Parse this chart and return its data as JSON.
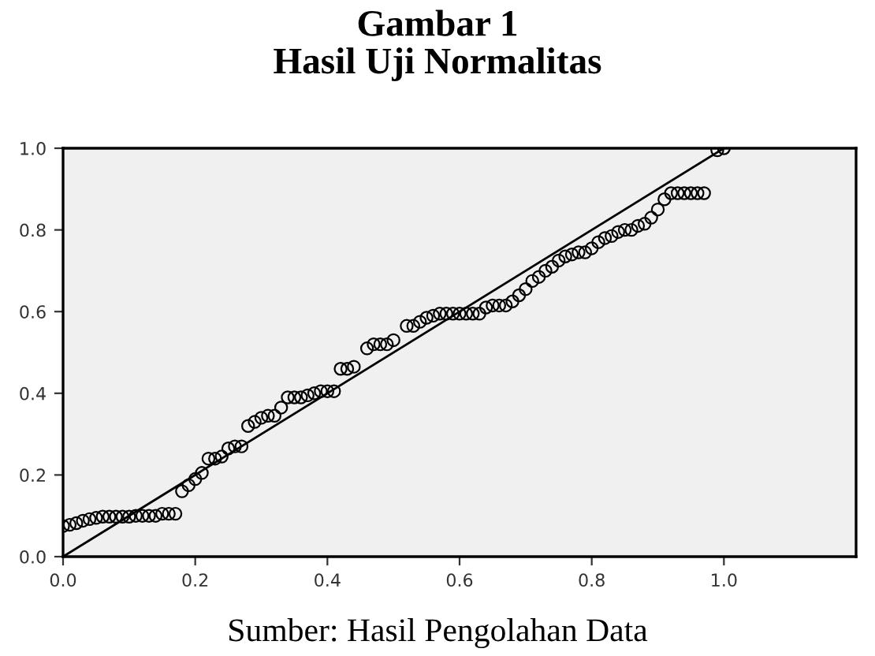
{
  "chart_data": {
    "type": "scatter",
    "title": "Gambar 1\nHasil Uji Normalitas",
    "xlim": [
      0,
      1.2
    ],
    "ylim": [
      0,
      1.0
    ],
    "xticks": [
      {
        "value": 0,
        "label": "0.0"
      },
      {
        "value": 0.2,
        "label": "0.2"
      },
      {
        "value": 0.4,
        "label": "0.4"
      },
      {
        "value": 0.6,
        "label": "0.6"
      },
      {
        "value": 0.8,
        "label": "0.8"
      },
      {
        "value": 1.0,
        "label": "1.0"
      }
    ],
    "yticks": [
      {
        "value": 0,
        "label": "0.0"
      },
      {
        "value": 0.2,
        "label": "0.2"
      },
      {
        "value": 0.4,
        "label": "0.4"
      },
      {
        "value": 0.6,
        "label": "0.6"
      },
      {
        "value": 0.8,
        "label": "0.8"
      },
      {
        "value": 1.0,
        "label": "1.0"
      }
    ],
    "grid": false,
    "series": [
      {
        "marker": "circle",
        "color": "#000000",
        "x": [
          0.0,
          0.01,
          0.02,
          0.03,
          0.04,
          0.05,
          0.06,
          0.07,
          0.08,
          0.09,
          0.1,
          0.11,
          0.12,
          0.13,
          0.14,
          0.15,
          0.16,
          0.17,
          0.18,
          0.19,
          0.2,
          0.21,
          0.22,
          0.23,
          0.24,
          0.25,
          0.26,
          0.27,
          0.28,
          0.29,
          0.3,
          0.31,
          0.32,
          0.33,
          0.34,
          0.35,
          0.36,
          0.37,
          0.38,
          0.39,
          0.4,
          0.41,
          0.42,
          0.43,
          0.44,
          0.46,
          0.47,
          0.48,
          0.49,
          0.5,
          0.52,
          0.53,
          0.54,
          0.55,
          0.56,
          0.57,
          0.58,
          0.59,
          0.6,
          0.61,
          0.62,
          0.63,
          0.64,
          0.65,
          0.66,
          0.67,
          0.68,
          0.69,
          0.7,
          0.71,
          0.72,
          0.73,
          0.74,
          0.75,
          0.76,
          0.77,
          0.78,
          0.79,
          0.8,
          0.81,
          0.82,
          0.83,
          0.84,
          0.85,
          0.86,
          0.87,
          0.88,
          0.89,
          0.9,
          0.91,
          0.92,
          0.93,
          0.94,
          0.95,
          0.96,
          0.97,
          0.99,
          1.0
        ],
        "values": [
          0.075,
          0.078,
          0.082,
          0.088,
          0.092,
          0.095,
          0.098,
          0.098,
          0.098,
          0.098,
          0.098,
          0.1,
          0.1,
          0.1,
          0.1,
          0.105,
          0.105,
          0.105,
          0.16,
          0.175,
          0.19,
          0.205,
          0.24,
          0.24,
          0.245,
          0.265,
          0.27,
          0.27,
          0.32,
          0.33,
          0.34,
          0.345,
          0.345,
          0.365,
          0.39,
          0.39,
          0.39,
          0.395,
          0.4,
          0.405,
          0.405,
          0.405,
          0.46,
          0.46,
          0.465,
          0.51,
          0.52,
          0.52,
          0.52,
          0.53,
          0.565,
          0.565,
          0.575,
          0.585,
          0.59,
          0.595,
          0.595,
          0.595,
          0.595,
          0.595,
          0.595,
          0.595,
          0.61,
          0.615,
          0.615,
          0.615,
          0.625,
          0.64,
          0.655,
          0.675,
          0.685,
          0.7,
          0.71,
          0.725,
          0.735,
          0.74,
          0.745,
          0.745,
          0.755,
          0.77,
          0.78,
          0.785,
          0.795,
          0.8,
          0.8,
          0.81,
          0.815,
          0.83,
          0.85,
          0.875,
          0.89,
          0.89,
          0.89,
          0.89,
          0.89,
          0.89,
          0.995,
          1.0
        ]
      },
      {
        "type": "line",
        "color": "#000000",
        "x": [
          0,
          1.0
        ],
        "values": [
          0,
          1.0
        ]
      }
    ],
    "annotations": [
      "Sumber: Hasil Pengolahan Data"
    ]
  }
}
